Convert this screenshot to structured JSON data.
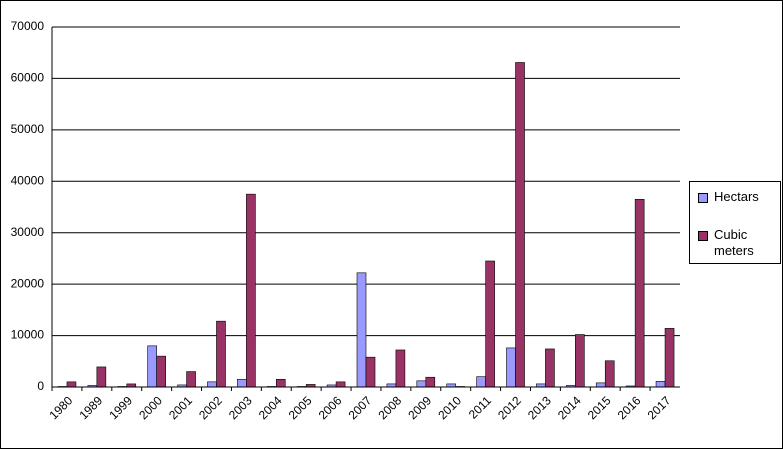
{
  "chart_data": {
    "type": "bar",
    "categories": [
      "1980",
      "1989",
      "1999",
      "2000",
      "2001",
      "2002",
      "2003",
      "2004",
      "2005",
      "2006",
      "2007",
      "2008",
      "2009",
      "2010",
      "2011",
      "2012",
      "2013",
      "2014",
      "2015",
      "2016",
      "2017"
    ],
    "series": [
      {
        "name": "Hectars",
        "color": "#9999ff",
        "values": [
          100,
          300,
          100,
          8000,
          400,
          1000,
          1500,
          100,
          100,
          400,
          22200,
          600,
          1200,
          600,
          2000,
          7600,
          600,
          300,
          800,
          200,
          1100
        ]
      },
      {
        "name": "Cubic meters",
        "color": "#993366",
        "values": [
          1000,
          3900,
          600,
          6000,
          3000,
          12800,
          37500,
          1500,
          500,
          1000,
          5800,
          7200,
          1900,
          100,
          24500,
          63100,
          7400,
          10200,
          5100,
          36500,
          11400
        ]
      }
    ],
    "ylim": [
      0,
      70000
    ],
    "yticks": [
      0,
      10000,
      20000,
      30000,
      40000,
      50000,
      60000,
      70000
    ],
    "grid": true,
    "legend": "right"
  }
}
